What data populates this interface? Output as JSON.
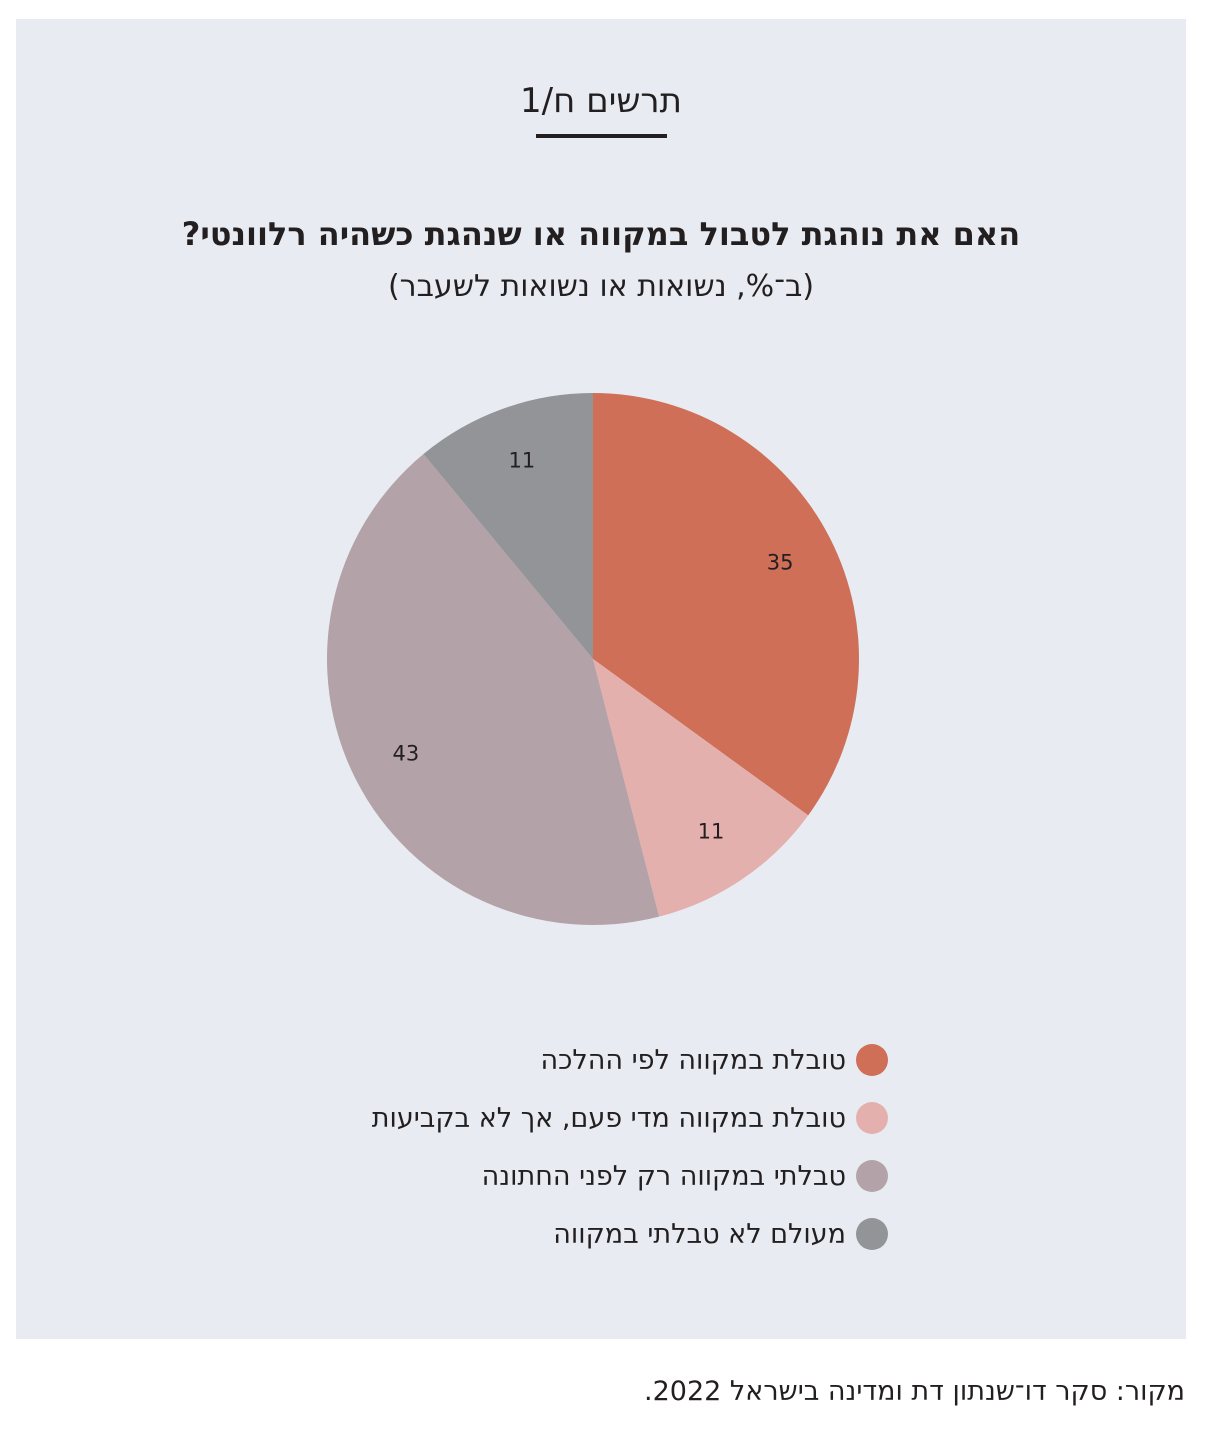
{
  "figure_label": "תרשים ח/1",
  "source": "מקור: סקר דו־שנתון דת ומדינה בישראל 2022.",
  "chart_data": {
    "type": "pie",
    "title": "האם את נוהגת לטבול במקווה או שנהגת כשהיה רלוונטי?",
    "subtitle": "(ב־%, נשואות או נשואות לשעבר)",
    "unit": "%",
    "legend_position": "bottom",
    "slices": [
      {
        "label": "טובלת במקווה לפי ההלכה",
        "value": 35,
        "color": "#cf6f58"
      },
      {
        "label": "טובלת במקווה מדי פעם, אך לא בקביעות",
        "value": 11,
        "color": "#e4b0ae"
      },
      {
        "label": "טבלתי במקווה רק לפני החתונה",
        "value": 43,
        "color": "#b3a3a8"
      },
      {
        "label": "מעולם לא טבלתי במקווה",
        "value": 11,
        "color": "#929497"
      }
    ]
  }
}
